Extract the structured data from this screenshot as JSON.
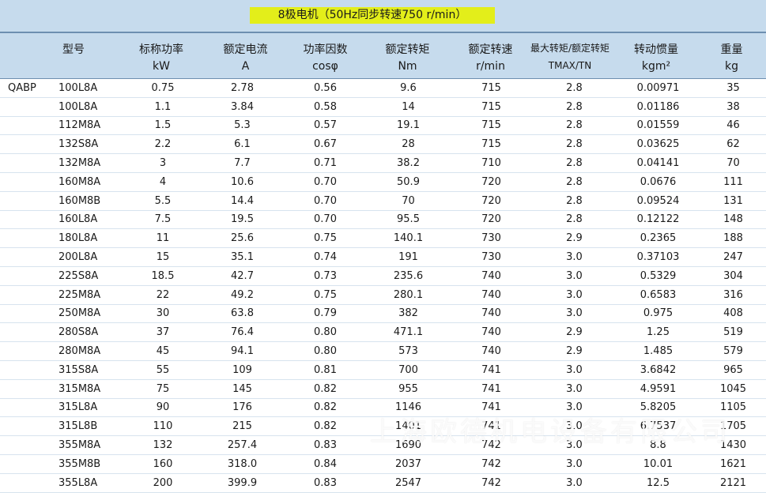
{
  "title": "8极电机（50Hz同步转速750 r/min）",
  "series_label": "QABP",
  "headers": [
    {
      "label": "型号",
      "unit": ""
    },
    {
      "label": "标称功率",
      "unit": "kW"
    },
    {
      "label": "额定电流",
      "unit": "A"
    },
    {
      "label": "功率因数",
      "unit": "cosφ"
    },
    {
      "label": "额定转矩",
      "unit": "Nm"
    },
    {
      "label": "额定转速",
      "unit": "r/min"
    },
    {
      "label": "最大转矩/额定转矩",
      "unit": "TMAX/TN"
    },
    {
      "label": "转动惯量",
      "unit": "kgm²"
    },
    {
      "label": "重量",
      "unit": "kg"
    }
  ],
  "rows": [
    [
      "100L8A",
      "0.75",
      "2.78",
      "0.56",
      "9.6",
      "715",
      "2.8",
      "0.00971",
      "35"
    ],
    [
      "100L8A",
      "1.1",
      "3.84",
      "0.58",
      "14",
      "715",
      "2.8",
      "0.01186",
      "38"
    ],
    [
      "112M8A",
      "1.5",
      "5.3",
      "0.57",
      "19.1",
      "715",
      "2.8",
      "0.01559",
      "46"
    ],
    [
      "132S8A",
      "2.2",
      "6.1",
      "0.67",
      "28",
      "715",
      "2.8",
      "0.03625",
      "62"
    ],
    [
      "132M8A",
      "3",
      "7.7",
      "0.71",
      "38.2",
      "710",
      "2.8",
      "0.04141",
      "70"
    ],
    [
      "160M8A",
      "4",
      "10.6",
      "0.70",
      "50.9",
      "720",
      "2.8",
      "0.0676",
      "111"
    ],
    [
      "160M8B",
      "5.5",
      "14.4",
      "0.70",
      "70",
      "720",
      "2.8",
      "0.09524",
      "131"
    ],
    [
      "160L8A",
      "7.5",
      "19.5",
      "0.70",
      "95.5",
      "720",
      "2.8",
      "0.12122",
      "148"
    ],
    [
      "180L8A",
      "11",
      "25.6",
      "0.75",
      "140.1",
      "730",
      "2.9",
      "0.2365",
      "188"
    ],
    [
      "200L8A",
      "15",
      "35.1",
      "0.74",
      "191",
      "730",
      "3.0",
      "0.37103",
      "247"
    ],
    [
      "225S8A",
      "18.5",
      "42.7",
      "0.73",
      "235.6",
      "740",
      "3.0",
      "0.5329",
      "304"
    ],
    [
      "225M8A",
      "22",
      "49.2",
      "0.75",
      "280.1",
      "740",
      "3.0",
      "0.6583",
      "316"
    ],
    [
      "250M8A",
      "30",
      "63.8",
      "0.79",
      "382",
      "740",
      "3.0",
      "0.975",
      "408"
    ],
    [
      "280S8A",
      "37",
      "76.4",
      "0.80",
      "471.1",
      "740",
      "2.9",
      "1.25",
      "519"
    ],
    [
      "280M8A",
      "45",
      "94.1",
      "0.80",
      "573",
      "740",
      "2.9",
      "1.485",
      "579"
    ],
    [
      "315S8A",
      "55",
      "109",
      "0.81",
      "700",
      "741",
      "3.0",
      "3.6842",
      "965"
    ],
    [
      "315M8A",
      "75",
      "145",
      "0.82",
      "955",
      "741",
      "3.0",
      "4.9591",
      "1045"
    ],
    [
      "315L8A",
      "90",
      "176",
      "0.82",
      "1146",
      "741",
      "3.0",
      "5.8205",
      "1105"
    ],
    [
      "315L8B",
      "110",
      "215",
      "0.82",
      "1401",
      "741",
      "3.0",
      "6.7537",
      "1705"
    ],
    [
      "355M8A",
      "132",
      "257.4",
      "0.83",
      "1690",
      "742",
      "3.0",
      "8.8",
      "1430"
    ],
    [
      "355M8B",
      "160",
      "318.0",
      "0.84",
      "2037",
      "742",
      "3.0",
      "10.01",
      "1621"
    ],
    [
      "355L8A",
      "200",
      "399.9",
      "0.83",
      "2547",
      "742",
      "3.0",
      "12.5",
      "2121"
    ]
  ],
  "watermark": "上海欧德机电设备有限公司"
}
